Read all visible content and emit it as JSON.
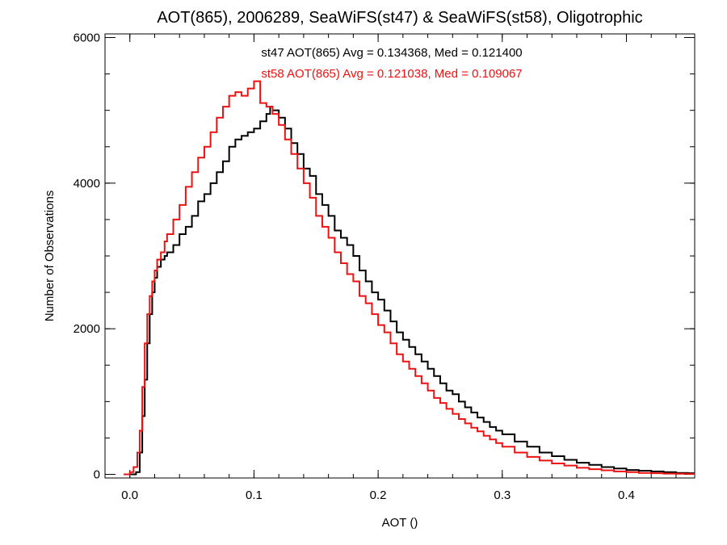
{
  "chart_data": {
    "type": "line",
    "title": "AOT(865), 2006289, SeaWiFS(st47) & SeaWiFS(st58), Oligotrophic",
    "xlabel": "AOT ()",
    "ylabel": "Number of Observations",
    "xlim": [
      -0.02,
      0.455
    ],
    "ylim": [
      -50,
      6050
    ],
    "xticks": [
      0.0,
      0.1,
      0.2,
      0.3,
      0.4
    ],
    "xtick_labels": [
      "0.0",
      "0.1",
      "0.2",
      "0.3",
      "0.4"
    ],
    "yticks": [
      0,
      2000,
      4000,
      6000
    ],
    "ytick_labels": [
      "0",
      "2000",
      "4000",
      "6000"
    ],
    "step": true,
    "grid": false,
    "annotations": [
      {
        "text": "st47 AOT(865) Avg = 0.134368, Med = 0.121400",
        "color": "#000000"
      },
      {
        "text": "st58 AOT(865) Avg = 0.121038, Med = 0.109067",
        "color": "#ee1111"
      }
    ],
    "series": [
      {
        "color": "#000000",
        "x": [
          0.0,
          0.005,
          0.008,
          0.01,
          0.012,
          0.014,
          0.016,
          0.018,
          0.02,
          0.022,
          0.025,
          0.028,
          0.03,
          0.035,
          0.04,
          0.045,
          0.05,
          0.055,
          0.06,
          0.065,
          0.07,
          0.075,
          0.08,
          0.085,
          0.09,
          0.095,
          0.1,
          0.105,
          0.11,
          0.113,
          0.115,
          0.12,
          0.125,
          0.13,
          0.135,
          0.14,
          0.145,
          0.15,
          0.155,
          0.16,
          0.165,
          0.17,
          0.175,
          0.18,
          0.185,
          0.19,
          0.195,
          0.2,
          0.205,
          0.21,
          0.215,
          0.22,
          0.225,
          0.23,
          0.235,
          0.24,
          0.245,
          0.25,
          0.255,
          0.26,
          0.265,
          0.27,
          0.275,
          0.28,
          0.285,
          0.29,
          0.295,
          0.3,
          0.31,
          0.32,
          0.33,
          0.34,
          0.35,
          0.36,
          0.37,
          0.38,
          0.39,
          0.4,
          0.41,
          0.42,
          0.43,
          0.44,
          0.45,
          0.455
        ],
        "y": [
          0,
          30,
          300,
          800,
          1300,
          1800,
          2200,
          2500,
          2700,
          2850,
          2950,
          3000,
          3050,
          3150,
          3300,
          3400,
          3550,
          3750,
          3850,
          4000,
          4150,
          4300,
          4500,
          4600,
          4650,
          4700,
          4750,
          4850,
          4950,
          5050,
          5000,
          4900,
          4750,
          4550,
          4400,
          4200,
          4100,
          3850,
          3700,
          3550,
          3350,
          3250,
          3150,
          3000,
          2800,
          2650,
          2500,
          2400,
          2250,
          2100,
          1950,
          1850,
          1750,
          1650,
          1550,
          1450,
          1350,
          1250,
          1150,
          1100,
          1000,
          920,
          850,
          780,
          720,
          650,
          600,
          550,
          450,
          380,
          300,
          250,
          200,
          160,
          130,
          100,
          80,
          60,
          50,
          40,
          30,
          20,
          15,
          10
        ]
      },
      {
        "color": "#ee1111",
        "x": [
          -0.005,
          0.0,
          0.003,
          0.006,
          0.008,
          0.01,
          0.012,
          0.014,
          0.016,
          0.018,
          0.02,
          0.022,
          0.025,
          0.028,
          0.03,
          0.035,
          0.04,
          0.045,
          0.05,
          0.055,
          0.06,
          0.065,
          0.07,
          0.075,
          0.08,
          0.085,
          0.09,
          0.095,
          0.1,
          0.105,
          0.11,
          0.115,
          0.12,
          0.125,
          0.13,
          0.135,
          0.14,
          0.145,
          0.15,
          0.155,
          0.16,
          0.165,
          0.17,
          0.175,
          0.18,
          0.185,
          0.19,
          0.195,
          0.2,
          0.205,
          0.21,
          0.215,
          0.22,
          0.225,
          0.23,
          0.235,
          0.24,
          0.245,
          0.25,
          0.255,
          0.26,
          0.265,
          0.27,
          0.275,
          0.28,
          0.285,
          0.29,
          0.295,
          0.3,
          0.31,
          0.32,
          0.33,
          0.34,
          0.35,
          0.36,
          0.37,
          0.38,
          0.39,
          0.4,
          0.41,
          0.42,
          0.43,
          0.44,
          0.45,
          0.455
        ],
        "y": [
          0,
          30,
          100,
          300,
          600,
          1200,
          1800,
          2200,
          2450,
          2650,
          2800,
          2950,
          3050,
          3200,
          3300,
          3500,
          3700,
          3950,
          4150,
          4350,
          4500,
          4700,
          4900,
          5050,
          5200,
          5250,
          5200,
          5300,
          5400,
          5100,
          5050,
          4950,
          4800,
          4600,
          4400,
          4200,
          4000,
          3800,
          3550,
          3400,
          3250,
          3050,
          2900,
          2750,
          2650,
          2450,
          2350,
          2200,
          2050,
          1950,
          1800,
          1650,
          1550,
          1450,
          1350,
          1250,
          1150,
          1050,
          980,
          900,
          830,
          760,
          700,
          640,
          590,
          530,
          480,
          430,
          380,
          300,
          240,
          190,
          150,
          120,
          90,
          70,
          55,
          40,
          30,
          20,
          15,
          10,
          8,
          5,
          3
        ]
      }
    ]
  }
}
